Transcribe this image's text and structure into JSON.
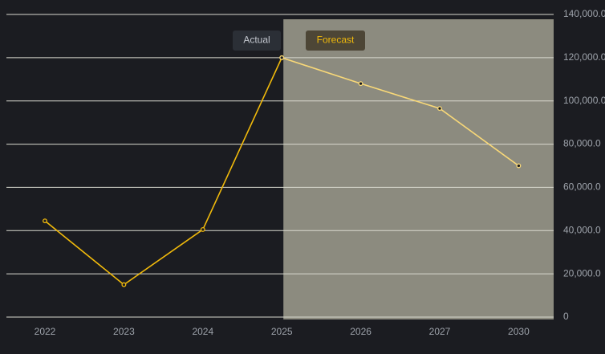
{
  "chart_data": {
    "type": "line",
    "categories": [
      "2022",
      "2023",
      "2024",
      "2025",
      "2026",
      "2027",
      "2030"
    ],
    "series": [
      {
        "name": "Actual",
        "color": "#f0b90b",
        "values": [
          44500,
          15000,
          40500,
          120000,
          null,
          null,
          null
        ]
      },
      {
        "name": "Forecast",
        "color": "#f8d878",
        "values": [
          null,
          null,
          null,
          120000,
          108000,
          96500,
          70000
        ]
      }
    ],
    "ylim": [
      0,
      140000
    ],
    "yticks": [
      0,
      {
        "value": 20000,
        "label": "20,000.0"
      },
      {
        "value": 40000,
        "label": "40,000.0"
      },
      {
        "value": 60000,
        "label": "60,000.0"
      },
      {
        "value": 80000,
        "label": "80,000.0"
      },
      {
        "value": 100000,
        "label": "100,000.0"
      },
      {
        "value": 120000,
        "label": "120,000.0"
      },
      {
        "value": 140000,
        "label": "140,000.0"
      }
    ],
    "grid": true
  }
}
